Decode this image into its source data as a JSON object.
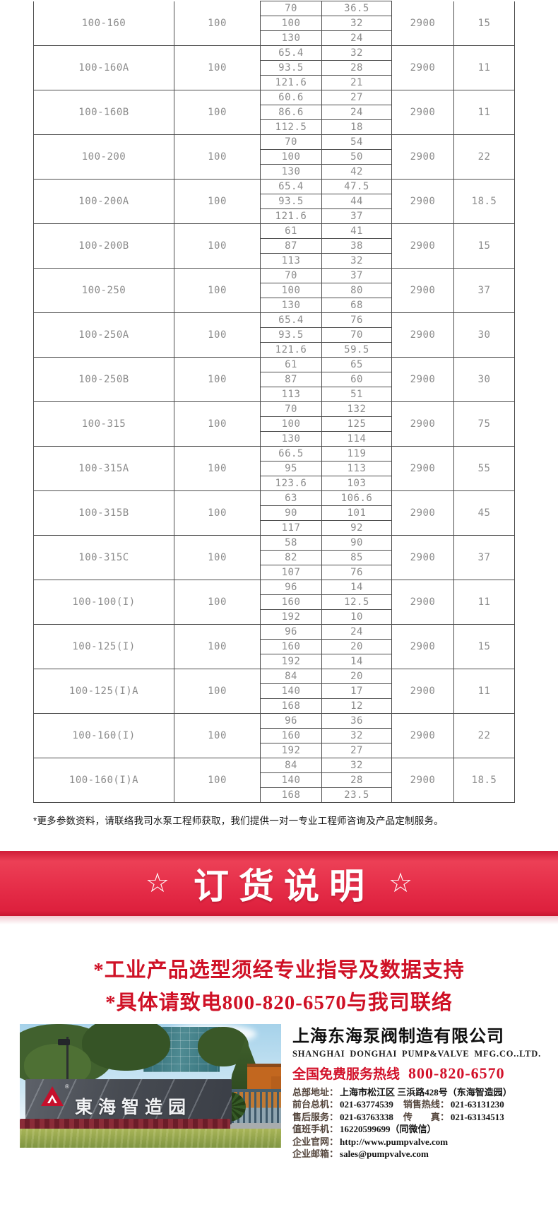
{
  "table": {
    "rows": [
      {
        "model": "100-160",
        "dn": "100",
        "points": [
          [
            "70",
            "36.5"
          ],
          [
            "100",
            "32"
          ],
          [
            "130",
            "24"
          ]
        ],
        "speed": "2900",
        "power": "15"
      },
      {
        "model": "100-160A",
        "dn": "100",
        "points": [
          [
            "65.4",
            "32"
          ],
          [
            "93.5",
            "28"
          ],
          [
            "121.6",
            "21"
          ]
        ],
        "speed": "2900",
        "power": "11"
      },
      {
        "model": "100-160B",
        "dn": "100",
        "points": [
          [
            "60.6",
            "27"
          ],
          [
            "86.6",
            "24"
          ],
          [
            "112.5",
            "18"
          ]
        ],
        "speed": "2900",
        "power": "11"
      },
      {
        "model": "100-200",
        "dn": "100",
        "points": [
          [
            "70",
            "54"
          ],
          [
            "100",
            "50"
          ],
          [
            "130",
            "42"
          ]
        ],
        "speed": "2900",
        "power": "22"
      },
      {
        "model": "100-200A",
        "dn": "100",
        "points": [
          [
            "65.4",
            "47.5"
          ],
          [
            "93.5",
            "44"
          ],
          [
            "121.6",
            "37"
          ]
        ],
        "speed": "2900",
        "power": "18.5"
      },
      {
        "model": "100-200B",
        "dn": "100",
        "points": [
          [
            "61",
            "41"
          ],
          [
            "87",
            "38"
          ],
          [
            "113",
            "32"
          ]
        ],
        "speed": "2900",
        "power": "15"
      },
      {
        "model": "100-250",
        "dn": "100",
        "points": [
          [
            "70",
            "37"
          ],
          [
            "100",
            "80"
          ],
          [
            "130",
            "68"
          ]
        ],
        "speed": "2900",
        "power": "37"
      },
      {
        "model": "100-250A",
        "dn": "100",
        "points": [
          [
            "65.4",
            "76"
          ],
          [
            "93.5",
            "70"
          ],
          [
            "121.6",
            "59.5"
          ]
        ],
        "speed": "2900",
        "power": "30"
      },
      {
        "model": "100-250B",
        "dn": "100",
        "points": [
          [
            "61",
            "65"
          ],
          [
            "87",
            "60"
          ],
          [
            "113",
            "51"
          ]
        ],
        "speed": "2900",
        "power": "30"
      },
      {
        "model": "100-315",
        "dn": "100",
        "points": [
          [
            "70",
            "132"
          ],
          [
            "100",
            "125"
          ],
          [
            "130",
            "114"
          ]
        ],
        "speed": "2900",
        "power": "75"
      },
      {
        "model": "100-315A",
        "dn": "100",
        "points": [
          [
            "66.5",
            "119"
          ],
          [
            "95",
            "113"
          ],
          [
            "123.6",
            "103"
          ]
        ],
        "speed": "2900",
        "power": "55"
      },
      {
        "model": "100-315B",
        "dn": "100",
        "points": [
          [
            "63",
            "106.6"
          ],
          [
            "90",
            "101"
          ],
          [
            "117",
            "92"
          ]
        ],
        "speed": "2900",
        "power": "45"
      },
      {
        "model": "100-315C",
        "dn": "100",
        "points": [
          [
            "58",
            "90"
          ],
          [
            "82",
            "85"
          ],
          [
            "107",
            "76"
          ]
        ],
        "speed": "2900",
        "power": "37"
      },
      {
        "model": "100-100(I)",
        "dn": "100",
        "points": [
          [
            "96",
            "14"
          ],
          [
            "160",
            "12.5"
          ],
          [
            "192",
            "10"
          ]
        ],
        "speed": "2900",
        "power": "11"
      },
      {
        "model": "100-125(I)",
        "dn": "100",
        "points": [
          [
            "96",
            "24"
          ],
          [
            "160",
            "20"
          ],
          [
            "192",
            "14"
          ]
        ],
        "speed": "2900",
        "power": "15"
      },
      {
        "model": "100-125(I)A",
        "dn": "100",
        "points": [
          [
            "84",
            "20"
          ],
          [
            "140",
            "17"
          ],
          [
            "168",
            "12"
          ]
        ],
        "speed": "2900",
        "power": "11"
      },
      {
        "model": "100-160(I)",
        "dn": "100",
        "points": [
          [
            "96",
            "36"
          ],
          [
            "160",
            "32"
          ],
          [
            "192",
            "27"
          ]
        ],
        "speed": "2900",
        "power": "22"
      },
      {
        "model": "100-160(I)A",
        "dn": "100",
        "points": [
          [
            "84",
            "32"
          ],
          [
            "140",
            "28"
          ],
          [
            "168",
            "23.5"
          ]
        ],
        "speed": "2900",
        "power": "18.5"
      }
    ]
  },
  "note": "*更多参数资料，请联络我司水泵工程师获取，我们提供一对一专业工程师咨询及产品定制服务。",
  "banner": {
    "star_left": "☆",
    "title": "订货说明",
    "star_right": "☆"
  },
  "slogans": [
    "*工业产品选型须经专业指导及数据支持",
    "*具体请致电800-820-6570与我司联络"
  ],
  "company": {
    "name": "上海东海泵阀制造有限公司",
    "name_en": "SHANGHAI DONGHAI PUMP&VALVE MFG.CO..LTD.",
    "hotline_label": "全国免费服务热线",
    "hotline_number": "800-820-6570",
    "contacts": [
      {
        "label": "总部地址：",
        "value": "上海市松江区 三浜路428号（东海智造园）"
      },
      {
        "label": "前台总机：",
        "value": "021-63774539",
        "label2": "销售热线：",
        "value2": "021-63131230"
      },
      {
        "label": "售后服务：",
        "value": "021-63763338",
        "label2": "传　　真：",
        "value2": "021-63134513"
      },
      {
        "label": "值班手机：",
        "value": "16220599699（同微信）"
      },
      {
        "label": "企业官网：",
        "value": "http://www.pumpvalve.com"
      },
      {
        "label": "企业邮箱：",
        "value": "sales@pumpvalve.com"
      }
    ]
  },
  "photo": {
    "sign_text": "東海智造园",
    "logo": "donghai-red-triangle-logo",
    "registered_mark": "®"
  },
  "colors": {
    "banner_red": "#e62e49",
    "slogan_red": "#cf1126",
    "hotline_red": "#d2112a",
    "table_text_gray": "#8b8b8b"
  }
}
